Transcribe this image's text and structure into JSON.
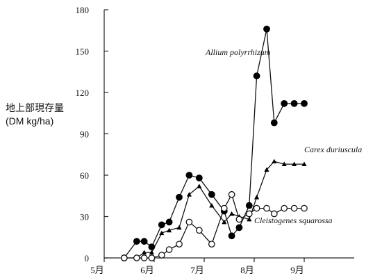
{
  "chart_data": {
    "type": "line",
    "ylabel_lines": [
      "地上部現存量",
      "(DM kg/ha)"
    ],
    "ylim": [
      0,
      180
    ],
    "yticks": [
      0,
      30,
      60,
      90,
      120,
      150,
      180
    ],
    "xlim": [
      1,
      11
    ],
    "xticks": [
      {
        "label": "5月",
        "x": 1
      },
      {
        "label": "6月",
        "x": 3
      },
      {
        "label": "7月",
        "x": 5
      },
      {
        "label": "8月",
        "x": 7
      },
      {
        "label": "9月",
        "x": 9
      }
    ],
    "grid": false,
    "series": [
      {
        "name": "Allium polyrrhizum",
        "marker": "filled-circle",
        "x": [
          1.8,
          2.3,
          2.6,
          2.9,
          3.3,
          3.6,
          4.0,
          4.4,
          4.8,
          5.3,
          5.8,
          6.1,
          6.4,
          6.8,
          7.1,
          7.5,
          7.8,
          8.2,
          8.6,
          9.0
        ],
        "y": [
          0,
          12,
          12,
          8,
          24,
          26,
          44,
          60,
          58,
          46,
          34,
          16,
          22,
          38,
          132,
          166,
          98,
          112,
          112,
          112
        ]
      },
      {
        "name": "Carex duriuscula",
        "marker": "filled-triangle",
        "x": [
          2.3,
          2.6,
          2.9,
          3.3,
          3.6,
          4.0,
          4.4,
          4.8,
          5.3,
          5.8,
          6.1,
          6.4,
          6.8,
          7.1,
          7.5,
          7.8,
          8.2,
          8.6,
          9.0
        ],
        "y": [
          0,
          4,
          4,
          18,
          20,
          22,
          46,
          52,
          38,
          26,
          32,
          30,
          28,
          44,
          64,
          70,
          68,
          68,
          68
        ]
      },
      {
        "name": "Cleistogenes squarossa",
        "marker": "open-circle",
        "x": [
          1.8,
          2.3,
          2.6,
          2.9,
          3.3,
          3.6,
          4.0,
          4.4,
          4.8,
          5.3,
          5.8,
          6.1,
          6.4,
          6.8,
          7.1,
          7.5,
          7.8,
          8.2,
          8.6,
          9.0
        ],
        "y": [
          0,
          0,
          0,
          0,
          2,
          6,
          10,
          26,
          20,
          10,
          36,
          46,
          28,
          32,
          36,
          36,
          32,
          36,
          36,
          36
        ]
      }
    ],
    "annotations": [
      {
        "text": "Allium polyrrhizum",
        "series": 0
      },
      {
        "text": "Carex duriuscula",
        "series": 1
      },
      {
        "text": "Cleistogenes squarossa",
        "series": 2
      }
    ]
  }
}
